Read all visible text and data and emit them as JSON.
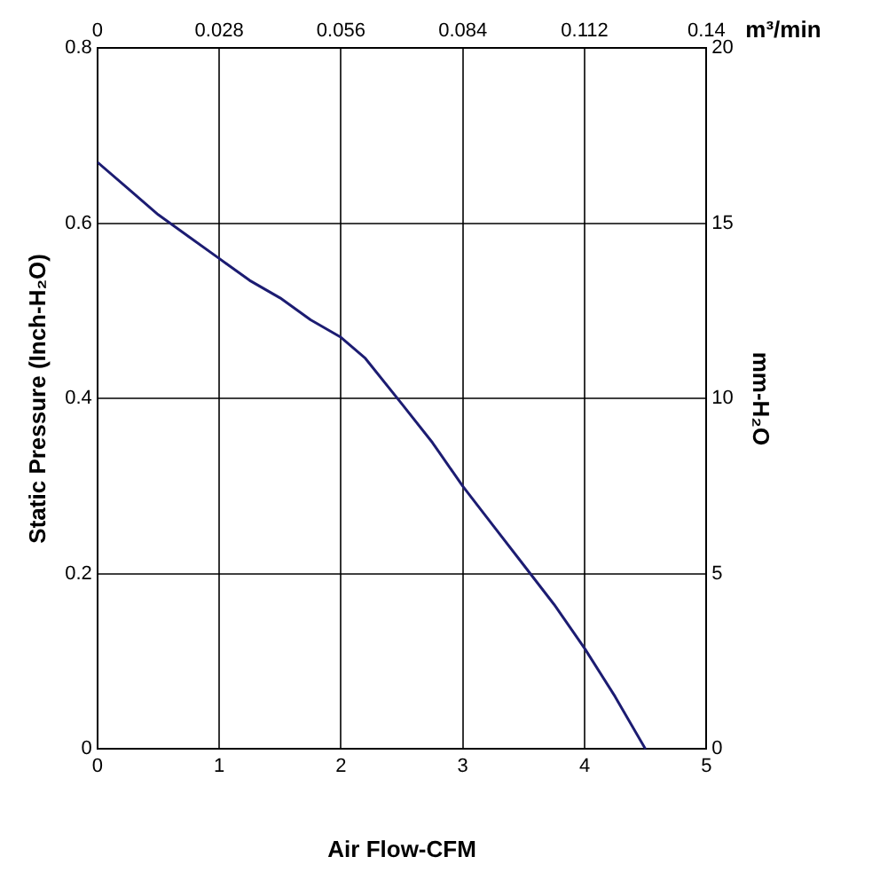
{
  "chart_data": {
    "type": "line",
    "xlabel": "Air Flow-CFM",
    "ylabel": "Static Pressure (Inch-H₂O)",
    "y2label": "mm-H₂O",
    "x2label": "m³/min",
    "x": [
      0,
      0.25,
      0.5,
      0.75,
      1,
      1.25,
      1.5,
      1.75,
      2,
      2.2,
      2.5,
      2.75,
      3,
      3.25,
      3.5,
      3.75,
      4,
      4.25,
      4.5
    ],
    "series": [
      {
        "color": "#1c1c72",
        "values": [
          0.67,
          0.64,
          0.61,
          0.585,
          0.56,
          0.535,
          0.515,
          0.49,
          0.47,
          0.446,
          0.394,
          0.35,
          0.3,
          0.255,
          0.21,
          0.165,
          0.115,
          0.06,
          0
        ]
      }
    ],
    "xlim": [
      0,
      5
    ],
    "xticks": [
      0,
      1,
      2,
      3,
      4,
      5
    ],
    "ylim": [
      0,
      0.8
    ],
    "yticks": [
      0,
      0.2,
      0.4,
      0.6,
      0.8
    ],
    "x2lim": [
      0,
      0.14
    ],
    "x2ticks": [
      0,
      0.028,
      0.056,
      0.084,
      0.112,
      0.14
    ],
    "y2lim": [
      0,
      20
    ],
    "y2ticks": [
      0,
      5,
      10,
      15,
      20
    ],
    "grid": true,
    "legend": false,
    "marker": "none",
    "line_style": "solid"
  }
}
